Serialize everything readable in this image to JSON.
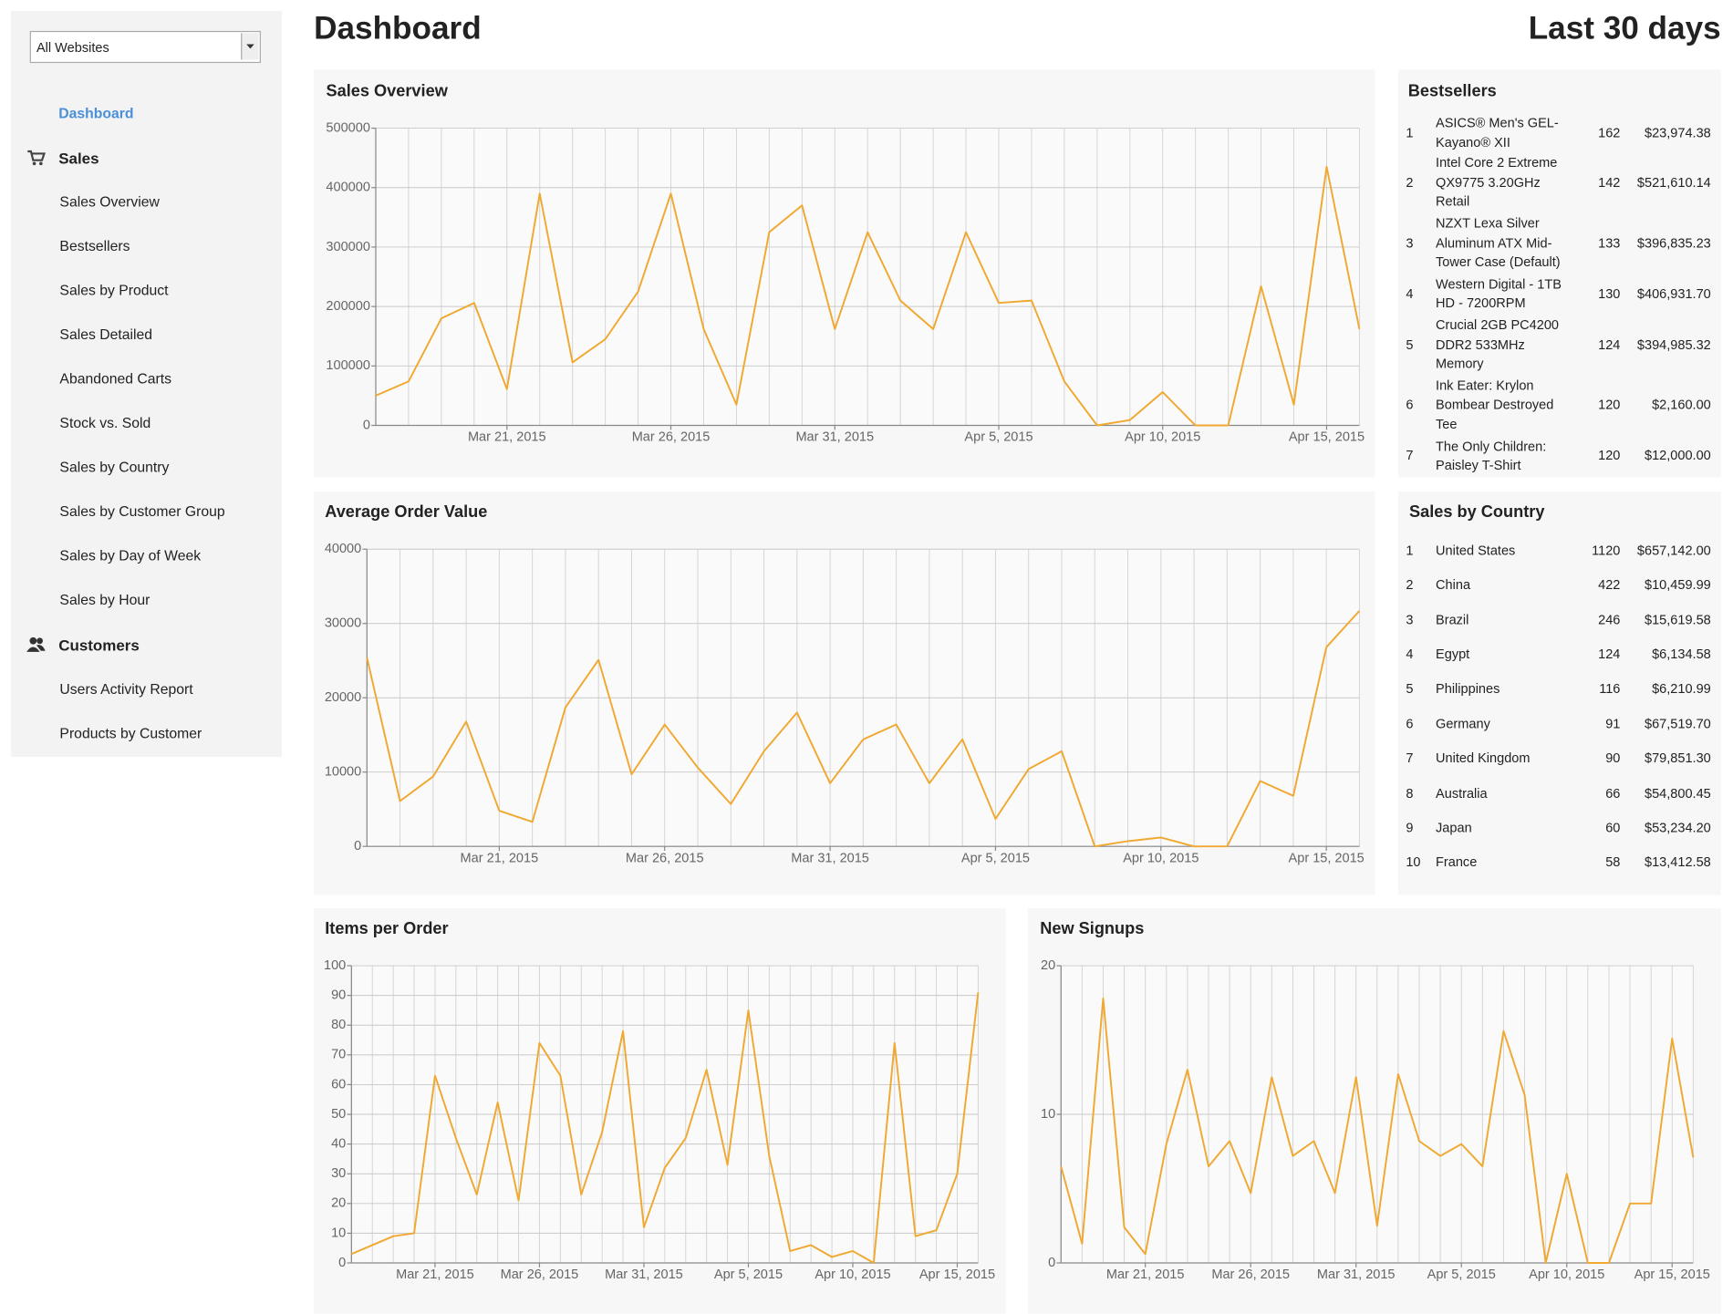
{
  "header": {
    "title": "Dashboard",
    "range": "Last 30 days"
  },
  "sidebar": {
    "select": "All Websites",
    "dashboard": "Dashboard",
    "sections": [
      {
        "title": "Sales",
        "items": [
          "Sales Overview",
          "Bestsellers",
          "Sales by Product",
          "Sales Detailed",
          "Abandoned Carts",
          "Stock vs. Sold",
          "Sales by Country",
          "Sales by Customer Group",
          "Sales by Day of Week",
          "Sales by Hour"
        ]
      },
      {
        "title": "Customers",
        "items": [
          "Users Activity Report",
          "Products by Customer"
        ]
      }
    ]
  },
  "bestsellers": {
    "title": "Bestsellers",
    "rows": [
      [
        1,
        "ASICS® Men's GEL-Kayano® XII",
        162,
        "$23,974.38"
      ],
      [
        2,
        "Intel Core 2 Extreme QX9775 3.20GHz Retail",
        142,
        "$521,610.14"
      ],
      [
        3,
        "NZXT Lexa Silver Aluminum ATX Mid-Tower Case (Default)",
        133,
        "$396,835.23"
      ],
      [
        4,
        "Western Digital - 1TB HD - 7200RPM",
        130,
        "$406,931.70"
      ],
      [
        5,
        "Crucial 2GB PC4200 DDR2 533MHz Memory",
        124,
        "$394,985.32"
      ],
      [
        6,
        "Ink Eater: Krylon Bombear Destroyed Tee",
        120,
        "$2,160.00"
      ],
      [
        7,
        "The Only Children: Paisley T-Shirt",
        120,
        "$12,000.00"
      ]
    ]
  },
  "sales_by_country": {
    "title": "Sales by Country",
    "rows": [
      [
        1,
        "United States",
        1120,
        "$657,142.00"
      ],
      [
        2,
        "China",
        422,
        "$10,459.99"
      ],
      [
        3,
        "Brazil",
        246,
        "$15,619.58"
      ],
      [
        4,
        "Egypt",
        124,
        "$6,134.58"
      ],
      [
        5,
        "Philippines",
        116,
        "$6,210.99"
      ],
      [
        6,
        "Germany",
        91,
        "$67,519.70"
      ],
      [
        7,
        "United Kingdom",
        90,
        "$79,851.30"
      ],
      [
        8,
        "Australia",
        66,
        "$54,800.45"
      ],
      [
        9,
        "Japan",
        60,
        "$53,234.20"
      ],
      [
        10,
        "France",
        58,
        "$13,412.58"
      ]
    ]
  },
  "chart_data": [
    {
      "type": "line",
      "title": "Sales Overview",
      "color": "#f0a830",
      "grid": true,
      "x": [
        "2015-03-17",
        "2015-03-18",
        "2015-03-19",
        "2015-03-20",
        "2015-03-21",
        "2015-03-22",
        "2015-03-23",
        "2015-03-24",
        "2015-03-25",
        "2015-03-26",
        "2015-03-27",
        "2015-03-28",
        "2015-03-29",
        "2015-03-30",
        "2015-03-31",
        "2015-04-01",
        "2015-04-02",
        "2015-04-03",
        "2015-04-04",
        "2015-04-05",
        "2015-04-06",
        "2015-04-07",
        "2015-04-08",
        "2015-04-09",
        "2015-04-10",
        "2015-04-11",
        "2015-04-12",
        "2015-04-13",
        "2015-04-14",
        "2015-04-15",
        "2015-04-16"
      ],
      "values": [
        50000,
        74000,
        180000,
        206000,
        61000,
        390000,
        106000,
        145000,
        225000,
        390000,
        162000,
        35000,
        325000,
        370000,
        162000,
        325000,
        210000,
        162000,
        325000,
        206000,
        210000,
        74000,
        0,
        9000,
        56000,
        0,
        0,
        234000,
        35000,
        435000,
        162000
      ],
      "xlim": [
        "2015-03-17",
        "2015-04-16"
      ],
      "xticks": [
        {
          "value": "2015-03-21",
          "label": "Mar 21, 2015"
        },
        {
          "value": "2015-03-26",
          "label": "Mar 26, 2015"
        },
        {
          "value": "2015-03-31",
          "label": "Mar 31, 2015"
        },
        {
          "value": "2015-04-05",
          "label": "Apr 5, 2015"
        },
        {
          "value": "2015-04-10",
          "label": "Apr 10, 2015"
        },
        {
          "value": "2015-04-15",
          "label": "Apr 15, 2015"
        }
      ],
      "ylim": [
        0,
        500000
      ],
      "yticks": [
        0,
        100000,
        200000,
        300000,
        400000,
        500000
      ]
    },
    {
      "type": "line",
      "title": "Average Order Value",
      "color": "#f0a830",
      "grid": true,
      "x": [
        "2015-03-17",
        "2015-03-18",
        "2015-03-19",
        "2015-03-20",
        "2015-03-21",
        "2015-03-22",
        "2015-03-23",
        "2015-03-24",
        "2015-03-25",
        "2015-03-26",
        "2015-03-27",
        "2015-03-28",
        "2015-03-29",
        "2015-03-30",
        "2015-03-31",
        "2015-04-01",
        "2015-04-02",
        "2015-04-03",
        "2015-04-04",
        "2015-04-05",
        "2015-04-06",
        "2015-04-07",
        "2015-04-08",
        "2015-04-09",
        "2015-04-10",
        "2015-04-11",
        "2015-04-12",
        "2015-04-13",
        "2015-04-14",
        "2015-04-15",
        "2015-04-16"
      ],
      "values": [
        25400,
        6100,
        9400,
        16800,
        4800,
        3300,
        18700,
        25100,
        9700,
        16400,
        10600,
        5700,
        12800,
        18000,
        8500,
        14400,
        16400,
        8500,
        14400,
        3700,
        10400,
        12800,
        0,
        700,
        1200,
        0,
        0,
        8800,
        6800,
        26800,
        31700
      ],
      "xlim": [
        "2015-03-17",
        "2015-04-16"
      ],
      "xticks": [
        {
          "value": "2015-03-21",
          "label": "Mar 21, 2015"
        },
        {
          "value": "2015-03-26",
          "label": "Mar 26, 2015"
        },
        {
          "value": "2015-03-31",
          "label": "Mar 31, 2015"
        },
        {
          "value": "2015-04-05",
          "label": "Apr 5, 2015"
        },
        {
          "value": "2015-04-10",
          "label": "Apr 10, 2015"
        },
        {
          "value": "2015-04-15",
          "label": "Apr 15, 2015"
        }
      ],
      "ylim": [
        0,
        40000
      ],
      "yticks": [
        0,
        10000,
        20000,
        30000,
        40000
      ]
    },
    {
      "type": "line",
      "title": "Items per Order",
      "color": "#f0a830",
      "grid": true,
      "x": [
        "2015-03-17",
        "2015-03-18",
        "2015-03-19",
        "2015-03-20",
        "2015-03-21",
        "2015-03-22",
        "2015-03-23",
        "2015-03-24",
        "2015-03-25",
        "2015-03-26",
        "2015-03-27",
        "2015-03-28",
        "2015-03-29",
        "2015-03-30",
        "2015-03-31",
        "2015-04-01",
        "2015-04-02",
        "2015-04-03",
        "2015-04-04",
        "2015-04-05",
        "2015-04-06",
        "2015-04-07",
        "2015-04-08",
        "2015-04-09",
        "2015-04-10",
        "2015-04-11",
        "2015-04-12",
        "2015-04-13",
        "2015-04-14",
        "2015-04-15",
        "2015-04-16"
      ],
      "values": [
        3,
        6,
        9,
        10,
        63,
        42,
        23,
        54,
        21,
        74,
        63,
        23,
        44,
        78,
        12,
        32,
        42,
        65,
        33,
        85,
        36,
        4,
        6,
        2,
        4,
        0,
        74,
        9,
        11,
        30,
        91
      ],
      "xlim": [
        "2015-03-17",
        "2015-04-16"
      ],
      "xticks": [
        {
          "value": "2015-03-21",
          "label": "Mar 21, 2015"
        },
        {
          "value": "2015-03-26",
          "label": "Mar 26, 2015"
        },
        {
          "value": "2015-03-31",
          "label": "Mar 31, 2015"
        },
        {
          "value": "2015-04-05",
          "label": "Apr 5, 2015"
        },
        {
          "value": "2015-04-10",
          "label": "Apr 10, 2015"
        },
        {
          "value": "2015-04-15",
          "label": "Apr 15, 2015"
        }
      ],
      "ylim": [
        0,
        100
      ],
      "yticks": [
        0,
        10,
        20,
        30,
        40,
        50,
        60,
        70,
        80,
        90,
        100
      ]
    },
    {
      "type": "line",
      "title": "New Signups",
      "color": "#f0a830",
      "grid": true,
      "x": [
        "2015-03-17",
        "2015-03-18",
        "2015-03-19",
        "2015-03-20",
        "2015-03-21",
        "2015-03-22",
        "2015-03-23",
        "2015-03-24",
        "2015-03-25",
        "2015-03-26",
        "2015-03-27",
        "2015-03-28",
        "2015-03-29",
        "2015-03-30",
        "2015-03-31",
        "2015-04-01",
        "2015-04-02",
        "2015-04-03",
        "2015-04-04",
        "2015-04-05",
        "2015-04-06",
        "2015-04-07",
        "2015-04-08",
        "2015-04-09",
        "2015-04-10",
        "2015-04-11",
        "2015-04-12",
        "2015-04-13",
        "2015-04-14",
        "2015-04-15",
        "2015-04-16"
      ],
      "values": [
        6.5,
        1.3,
        17.8,
        2.4,
        0.6,
        8,
        13,
        6.5,
        8.2,
        4.7,
        12.5,
        7.2,
        8.2,
        4.7,
        12.5,
        2.5,
        12.7,
        8.2,
        7.2,
        8,
        6.5,
        15.6,
        11.3,
        0,
        6,
        0,
        0,
        4,
        4,
        15.1,
        7.1
      ],
      "xlim": [
        "2015-03-17",
        "2015-04-16"
      ],
      "xticks": [
        {
          "value": "2015-03-21",
          "label": "Mar 21, 2015"
        },
        {
          "value": "2015-03-26",
          "label": "Mar 26, 2015"
        },
        {
          "value": "2015-03-31",
          "label": "Mar 31, 2015"
        },
        {
          "value": "2015-04-05",
          "label": "Apr 5, 2015"
        },
        {
          "value": "2015-04-10",
          "label": "Apr 10, 2015"
        },
        {
          "value": "2015-04-15",
          "label": "Apr 15, 2015"
        }
      ],
      "ylim": [
        0,
        20
      ],
      "yticks": [
        0,
        10,
        20
      ]
    }
  ]
}
